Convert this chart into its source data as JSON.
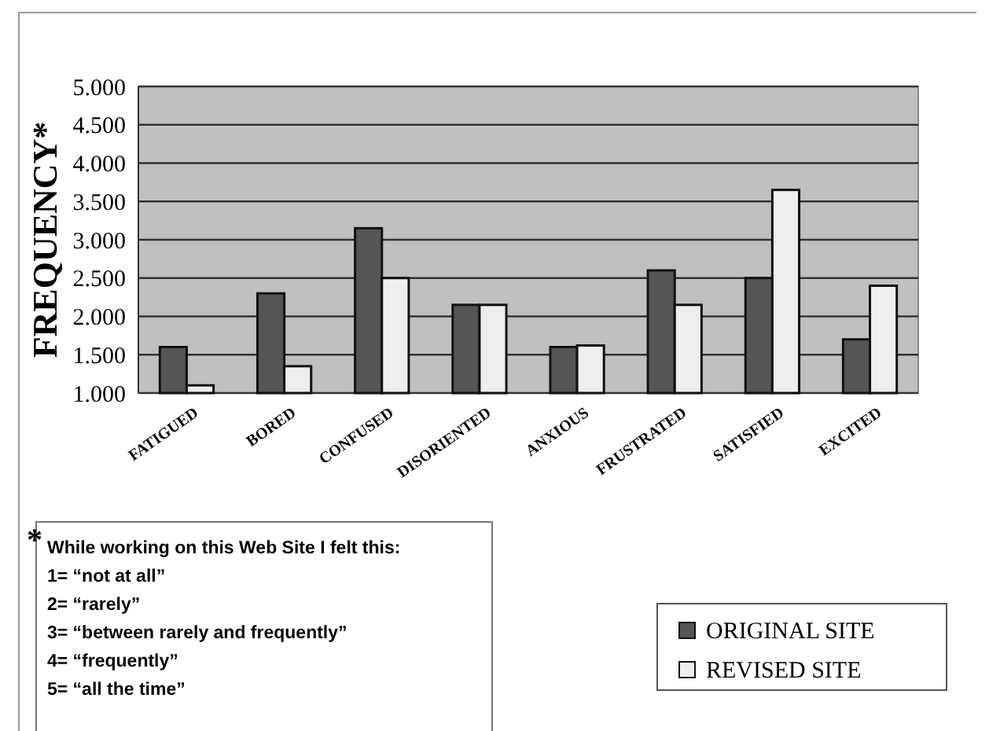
{
  "chart_data": {
    "type": "bar",
    "ylabel": "FREQUENCY*",
    "categories": [
      "FATIGUED",
      "BORED",
      "CONFUSED",
      "DISORIENTED",
      "ANXIOUS",
      "FRUSTRATED",
      "SATISFIED",
      "EXCITED"
    ],
    "series": [
      {
        "name": "ORIGINAL SITE",
        "color": "#555555",
        "values": [
          1.6,
          2.3,
          3.15,
          2.15,
          1.6,
          2.6,
          2.5,
          1.7
        ]
      },
      {
        "name": "REVISED SITE",
        "color": "#eeeeee",
        "values": [
          1.1,
          1.35,
          2.5,
          2.15,
          1.62,
          2.15,
          3.65,
          2.4
        ]
      }
    ],
    "ylim": [
      1,
      5
    ],
    "yticks": [
      {
        "value": 1,
        "label": "1.000"
      },
      {
        "value": 1.5,
        "label": "1.500"
      },
      {
        "value": 2,
        "label": "2.000"
      },
      {
        "value": 2.5,
        "label": "2.500"
      },
      {
        "value": 3,
        "label": "3.000"
      },
      {
        "value": 3.5,
        "label": "3.500"
      },
      {
        "value": 4,
        "label": "4.000"
      },
      {
        "value": 4.5,
        "label": "4.500"
      },
      {
        "value": 5,
        "label": "5.000"
      }
    ],
    "grid": "y",
    "legend": "bottom right",
    "annotations": [
      "*",
      "While working on this Web Site I felt this:",
      "1= “not at all”",
      "2=  “rarely”",
      "3= “between rarely and frequently”",
      "4=  “frequently”",
      "5= “all the time”"
    ]
  }
}
